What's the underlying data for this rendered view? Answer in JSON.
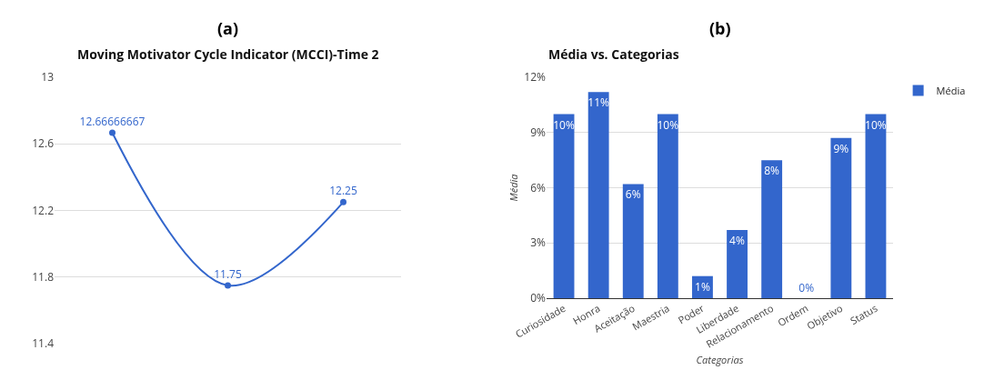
{
  "chart_data": [
    {
      "type": "line",
      "title": "(a)",
      "subtitle": "Moving Motivator Cycle Indicator (MCCI)-Time 2",
      "categories": [
        null,
        null,
        null
      ],
      "series": [
        {
          "color": "#3366cc",
          "values": [
            12.66666667,
            11.75,
            12.25
          ]
        }
      ],
      "ylim": [
        11.4,
        13
      ],
      "yticks": [
        11.4,
        11.8,
        12.2,
        12.6,
        13
      ],
      "grid": "y",
      "marker": "circle",
      "line_style": "solid",
      "data_labels": true
    },
    {
      "type": "bar",
      "title": "(b)",
      "subtitle": "Média vs. Categorias",
      "xlabel": "Categorias",
      "ylabel": "Média",
      "categories": [
        "Curiosidade",
        "Honra",
        "Aceitação",
        "Maestria",
        "Poder",
        "Liberdade",
        "Relacionamento",
        "Ordem",
        "Objetivo",
        "Status"
      ],
      "series": [
        {
          "name": "Média",
          "color": "#3366cc",
          "values": [
            10,
            11.2,
            6.2,
            10,
            1.2,
            3.7,
            7.5,
            0,
            8.7,
            10
          ],
          "value_labels": [
            "10%",
            "11%",
            "6%",
            "10%",
            "1%",
            "4%",
            "8%",
            "0%",
            "9%",
            "10%"
          ]
        }
      ],
      "ylim": [
        0,
        12
      ],
      "yticks": [
        {
          "value": 0,
          "label": "0%"
        },
        {
          "value": 3,
          "label": "3%"
        },
        {
          "value": 6,
          "label": "6%"
        },
        {
          "value": 9,
          "label": "9%"
        },
        {
          "value": 12,
          "label": "12%"
        }
      ],
      "grid": "y",
      "legend": "top right"
    }
  ]
}
